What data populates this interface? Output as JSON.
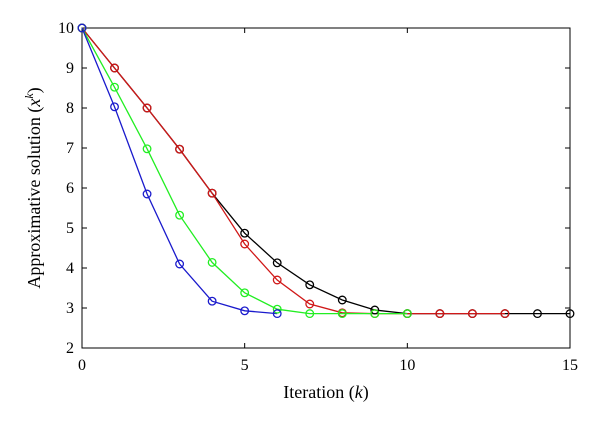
{
  "chart_data": {
    "type": "line",
    "title": "",
    "xlabel": "Iteration (",
    "xlabel_var": "k",
    "xlabel_end": ")",
    "ylabel": "Approximative solution (",
    "ylabel_var": "x",
    "ylabel_sup": "k",
    "ylabel_end": ")",
    "xlim": [
      0,
      15
    ],
    "ylim": [
      2,
      10
    ],
    "xticks": [
      0,
      5,
      10,
      15
    ],
    "yticks": [
      2,
      3,
      4,
      5,
      6,
      7,
      8,
      9,
      10
    ],
    "grid": false,
    "legend": "none",
    "series": [
      {
        "color": "#000000",
        "x": [
          0,
          1,
          2,
          3,
          4,
          5,
          6,
          7,
          8,
          9,
          10,
          11,
          12,
          13,
          14,
          15
        ],
        "y": [
          10,
          9.0,
          8.0,
          6.97,
          5.87,
          4.87,
          4.13,
          3.58,
          3.2,
          2.95,
          2.86,
          2.86,
          2.86,
          2.86,
          2.86,
          2.86
        ]
      },
      {
        "color": "#d01818",
        "x": [
          0,
          1,
          2,
          3,
          4,
          5,
          6,
          7,
          8,
          9,
          10,
          11,
          12,
          13
        ],
        "y": [
          10,
          9.0,
          8.0,
          6.97,
          5.87,
          4.6,
          3.7,
          3.1,
          2.88,
          2.86,
          2.86,
          2.86,
          2.86,
          2.86
        ]
      },
      {
        "color": "#22ee22",
        "x": [
          0,
          1,
          2,
          3,
          4,
          5,
          6,
          7,
          8,
          9,
          10
        ],
        "y": [
          10,
          8.52,
          6.98,
          5.32,
          4.14,
          3.38,
          2.97,
          2.86,
          2.86,
          2.86,
          2.86
        ]
      },
      {
        "color": "#1a1acc",
        "x": [
          0,
          1,
          2,
          3,
          4,
          5,
          6
        ],
        "y": [
          10,
          8.03,
          5.85,
          4.1,
          3.17,
          2.93,
          2.86
        ]
      }
    ]
  }
}
